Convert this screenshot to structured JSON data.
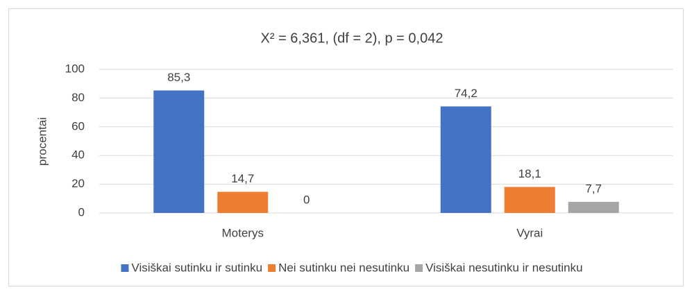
{
  "chart_data": {
    "type": "bar",
    "title": "X² = 6,361, (df = 2), p = 0,042",
    "y_label": "procentai",
    "categories": [
      "Moterys",
      "Vyrai"
    ],
    "series": [
      {
        "name": "Visiškai sutinku ir sutinku",
        "color": "#4472c4",
        "values": [
          85.3,
          74.2
        ],
        "value_labels": [
          "85,3",
          "74,2"
        ]
      },
      {
        "name": "Nei sutinku nei nesutinku",
        "color": "#ed7d31",
        "values": [
          14.7,
          18.1
        ],
        "value_labels": [
          "14,7",
          "18,1"
        ]
      },
      {
        "name": "Visiškai nesutinku ir nesutinku",
        "color": "#a5a5a5",
        "values": [
          0,
          7.7
        ],
        "value_labels": [
          "0",
          "7,7"
        ]
      }
    ],
    "ylim": [
      0,
      100
    ],
    "yticks": [
      0,
      20,
      40,
      60,
      80,
      100
    ],
    "grid": true,
    "legend": "bottom"
  }
}
